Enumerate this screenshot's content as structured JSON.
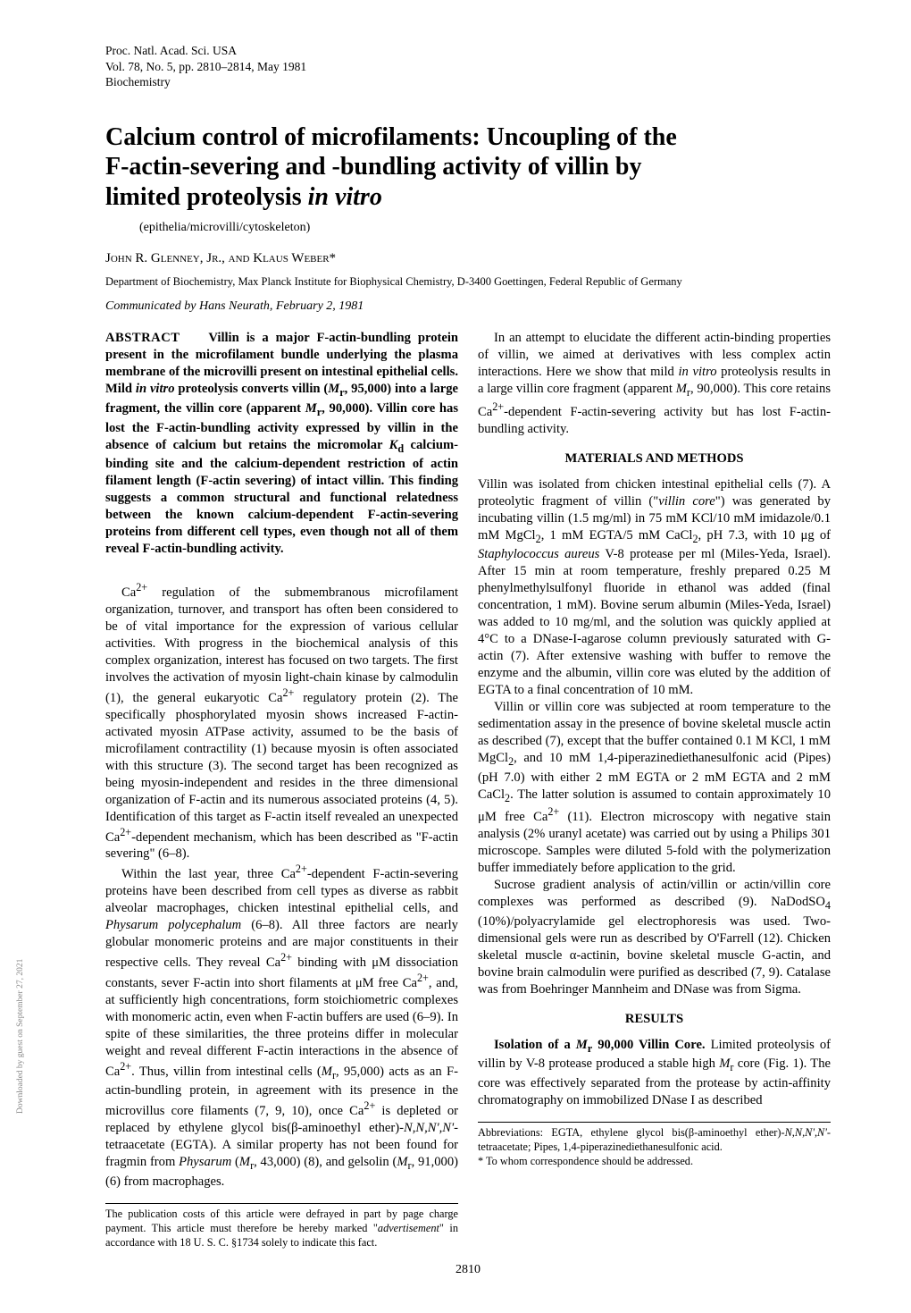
{
  "header": {
    "journal": "Proc. Natl. Acad. Sci. USA",
    "volume_line": "Vol. 78, No. 5, pp. 2810–2814, May 1981",
    "section": "Biochemistry"
  },
  "title_lines": [
    "Calcium control of microfilaments: Uncoupling of the",
    "F-actin-severing and -bundling activity of villin by",
    "limited proteolysis in vitro"
  ],
  "title_italic_tail": "in vitro",
  "keywords": "(epithelia/microvilli/cytoskeleton)",
  "authors": "John R. Glenney, Jr., and Klaus Weber*",
  "affiliation": "Department of Biochemistry, Max Planck Institute for Biophysical Chemistry, D-3400 Goettingen, Federal Republic of Germany",
  "communicated": "Communicated by Hans Neurath, February 2, 1981",
  "abstract_label": "ABSTRACT",
  "abstract_html": "Villin is a major F-actin-bundling protein present in the microfilament bundle underlying the plasma membrane of the microvilli present on intestinal epithelial cells. Mild <i>in vitro</i> proteolysis converts villin (<i>M</i><sub>r</sub>, 95,000) into a large fragment, the villin core (apparent <i>M</i><sub>r</sub>, 90,000). Villin core has lost the F-actin-bundling activity expressed by villin in the absence of calcium but retains the micromolar <i>K</i><sub>d</sub> calcium-binding site and the calcium-dependent restriction of actin filament length (F-actin severing) of intact villin. This finding suggests a common structural and functional relatedness between the known calcium-dependent F-actin-severing proteins from different cell types, even though not all of them reveal F-actin-bundling activity.",
  "intro_p1_html": "Ca<sup>2+</sup> regulation of the submembranous microfilament organization, turnover, and transport has often been considered to be of vital importance for the expression of various cellular activities. With progress in the biochemical analysis of this complex organization, interest has focused on two targets. The first involves the activation of myosin light-chain kinase by calmodulin (1), the general eukaryotic Ca<sup>2+</sup> regulatory protein (2). The specifically phosphorylated myosin shows increased F-actin-activated myosin ATPase activity, assumed to be the basis of microfilament contractility (1) because myosin is often associated with this structure (3). The second target has been recognized as being myosin-independent and resides in the three dimensional organization of F-actin and its numerous associated proteins (4, 5). Identification of this target as F-actin itself revealed an unexpected Ca<sup>2+</sup>-dependent mechanism, which has been described as \"F-actin severing\" (6–8).",
  "intro_p2_html": "Within the last year, three Ca<sup>2+</sup>-dependent F-actin-severing proteins have been described from cell types as diverse as rabbit alveolar macrophages, chicken intestinal epithelial cells, and <i>Physarum polycephalum</i> (6–8). All three factors are nearly globular monomeric proteins and are major constituents in their respective cells. They reveal Ca<sup>2+</sup> binding with μM dissociation constants, sever F-actin into short filaments at μM free Ca<sup>2+</sup>, and, at sufficiently high concentrations, form stoichiometric complexes with monomeric actin, even when F-actin buffers are used (6–9). In spite of these similarities, the three proteins differ in molecular weight and reveal different F-actin interactions in the absence of Ca<sup>2+</sup>. Thus, villin from intestinal cells (<i>M</i><sub>r</sub>, 95,000) acts as an F-actin-bundling protein, in agreement with its presence in the microvillus core filaments (7, 9, 10), once Ca<sup>2+</sup> is depleted or replaced by ethylene glycol bis(β-aminoethyl ether)-<i>N,N,N',N'</i>-tetraacetate (EGTA). A similar property has not been found for fragmin from <i>Physarum</i> (<i>M</i><sub>r</sub>, 43,000) (8), and gelsolin (<i>M</i><sub>r</sub>, 91,000) (6) from macrophages.",
  "col2_p1_html": "In an attempt to elucidate the different actin-binding properties of villin, we aimed at derivatives with less complex actin interactions. Here we show that mild <i>in vitro</i> proteolysis results in a large villin core fragment (apparent <i>M</i><sub>r</sub>, 90,000). This core retains Ca<sup>2+</sup>-dependent F-actin-severing activity but has lost F-actin-bundling activity.",
  "materials_heading": "MATERIALS AND METHODS",
  "materials_p1_html": "Villin was isolated from chicken intestinal epithelial cells (7). A proteolytic fragment of villin (\"<i>villin core</i>\") was generated by incubating villin (1.5 mg/ml) in 75 mM KCl/10 mM imidazole/0.1 mM MgCl<sub>2</sub>, 1 mM EGTA/5 mM CaCl<sub>2</sub>, pH 7.3, with 10 μg of <i>Staphylococcus aureus</i> V-8 protease per ml (Miles-Yeda, Israel). After 15 min at room temperature, freshly prepared 0.25 M phenylmethylsulfonyl fluoride in ethanol was added (final concentration, 1 mM). Bovine serum albumin (Miles-Yeda, Israel) was added to 10 mg/ml, and the solution was quickly applied at 4°C to a DNase-I-agarose column previously saturated with G-actin (7). After extensive washing with buffer to remove the enzyme and the albumin, villin core was eluted by the addition of EGTA to a final concentration of 10 mM.",
  "materials_p2_html": "Villin or villin core was subjected at room temperature to the sedimentation assay in the presence of bovine skeletal muscle actin as described (7), except that the buffer contained 0.1 M KCl, 1 mM MgCl<sub>2</sub>, and 10 mM 1,4-piperazinediethanesulfonic acid (Pipes) (pH 7.0) with either 2 mM EGTA or 2 mM EGTA and 2 mM CaCl<sub>2</sub>. The latter solution is assumed to contain approximately 10 μM free Ca<sup>2+</sup> (11). Electron microscopy with negative stain analysis (2% uranyl acetate) was carried out by using a Philips 301 microscope. Samples were diluted 5-fold with the polymerization buffer immediately before application to the grid.",
  "materials_p3_html": "Sucrose gradient analysis of actin/villin or actin/villin core complexes was performed as described (9). NaDodSO<sub>4</sub> (10%)/polyacrylamide gel electrophoresis was used. Two-dimensional gels were run as described by O'Farrell (12). Chicken skeletal muscle α-actinin, bovine skeletal muscle G-actin, and bovine brain calmodulin were purified as described (7, 9). Catalase was from Boehringer Mannheim and DNase was from Sigma.",
  "results_heading": "RESULTS",
  "results_run_in_html": "Isolation of a <i>M</i><sub>r</sub> 90,000 Villin Core.",
  "results_p1_html": "Limited proteolysis of villin by V-8 protease produced a stable high <i>M</i><sub>r</sub> core (Fig. 1). The core was effectively separated from the protease by actin-affinity chromatography on immobilized DNase I as described",
  "footnote_left_html": "The publication costs of this article were defrayed in part by page charge payment. This article must therefore be hereby marked \"<i>advertisement</i>\" in accordance with 18 U. S. C. §1734 solely to indicate this fact.",
  "footnote_right_html": "Abbreviations: EGTA, ethylene glycol bis(β-aminoethyl ether)-<i>N,N,N',N'</i>-tetraacetate; Pipes, 1,4-piperazinediethanesulfonic acid.<br>* To whom correspondence should be addressed.",
  "page_number": "2810",
  "side_text": "Downloaded by guest on September 27, 2021"
}
